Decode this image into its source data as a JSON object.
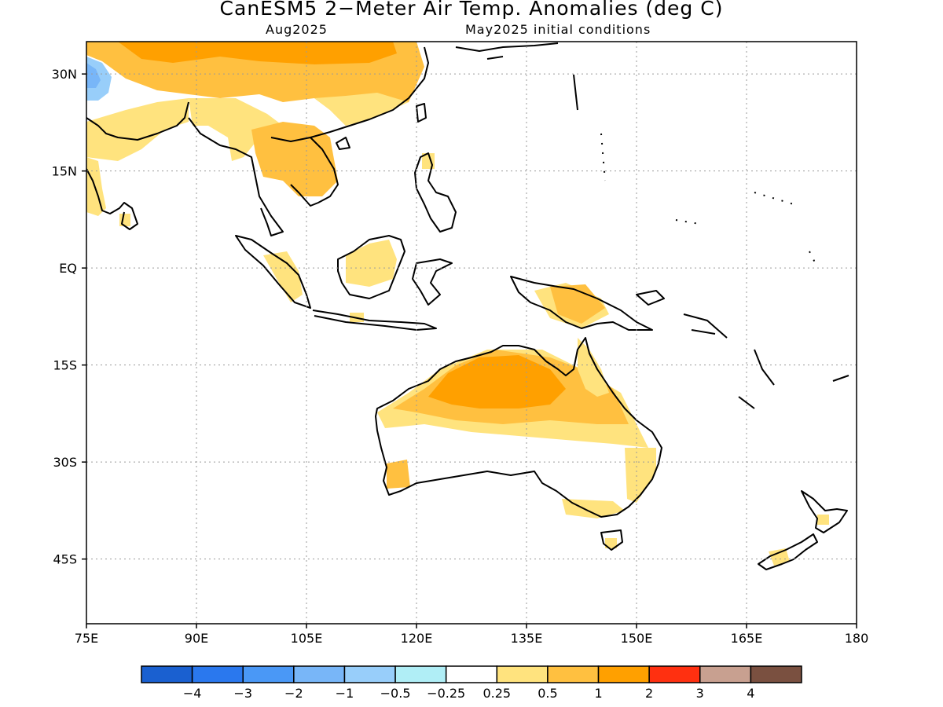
{
  "header": {
    "title": "CanESM5 2−Meter Air Temp. Anomalies (deg C)",
    "valid_month": "Aug2025",
    "init": "May2025 initial conditions"
  },
  "axes": {
    "lon": [
      {
        "value": 75,
        "label": "75E"
      },
      {
        "value": 90,
        "label": "90E"
      },
      {
        "value": 105,
        "label": "105E"
      },
      {
        "value": 120,
        "label": "120E"
      },
      {
        "value": 135,
        "label": "135E"
      },
      {
        "value": 150,
        "label": "150E"
      },
      {
        "value": 165,
        "label": "165E"
      },
      {
        "value": 180,
        "label": "180"
      }
    ],
    "lat": [
      {
        "value": 30,
        "label": "30N"
      },
      {
        "value": 15,
        "label": "15N"
      },
      {
        "value": 0,
        "label": "EQ"
      },
      {
        "value": -15,
        "label": "15S"
      },
      {
        "value": -30,
        "label": "30S"
      },
      {
        "value": -45,
        "label": "45S"
      }
    ],
    "lon_range": [
      75,
      180
    ],
    "lat_range": [
      -55,
      35
    ],
    "grid": "dotted"
  },
  "colorbar": {
    "colors": [
      "#1a60d0",
      "#2a78ee",
      "#4a98f6",
      "#78b6f8",
      "#98cefa",
      "#b0eef6",
      "#ffffff",
      "#ffe37e",
      "#ffc040",
      "#ffa000",
      "#ff3010",
      "#c8a090",
      "#7a5040"
    ],
    "labels": [
      "−4",
      "−3",
      "−2",
      "−1",
      "−0.5",
      "−0.25",
      "0.25",
      "0.5",
      "1",
      "2",
      "3",
      "4"
    ]
  },
  "legend_colors": {
    "light": "#ffe37e",
    "medium": "#ffc040",
    "strong": "#ffa000",
    "cool": "#98cefa",
    "cooler": "#78b6f8"
  }
}
